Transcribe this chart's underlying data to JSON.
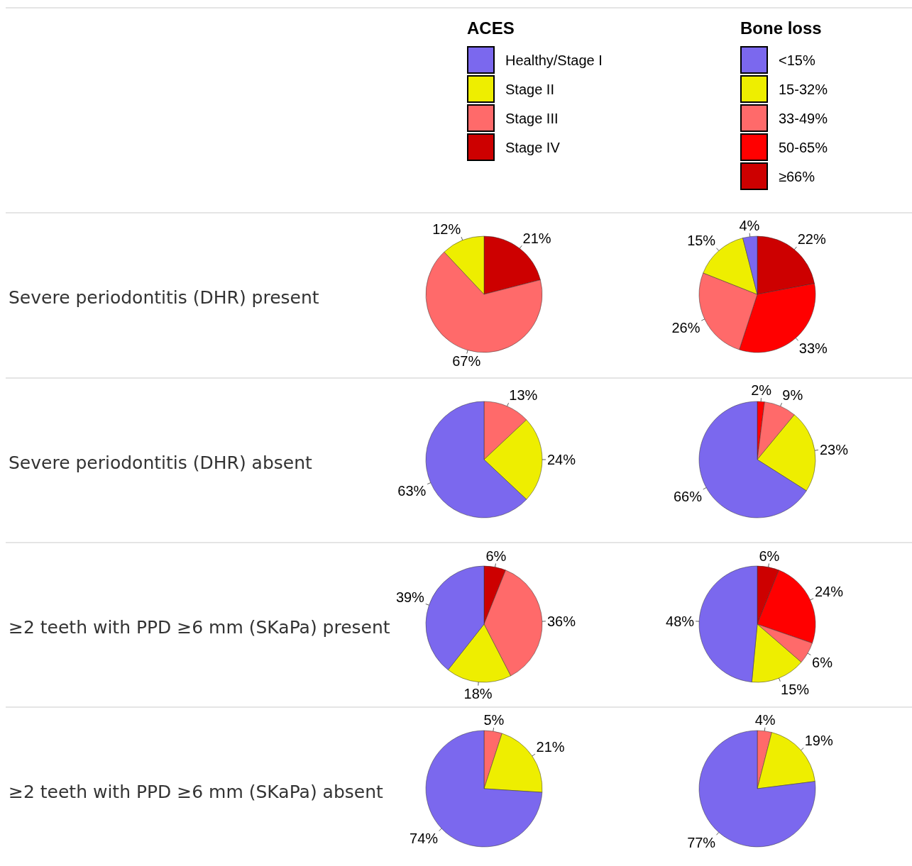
{
  "chart_data": [
    {
      "type": "pie",
      "title": "Severe periodontitis (DHR) present",
      "legend_title": "ACES",
      "legend": "top",
      "categories": [
        "Healthy/Stage I",
        "Stage II",
        "Stage III",
        "Stage IV"
      ],
      "colors": [
        "#7b68ee",
        "#eeee00",
        "#ff6a6a",
        "#cd0000"
      ],
      "values": [
        null,
        12,
        67,
        21
      ],
      "value_labels": [
        null,
        "12%",
        "67%",
        "21%"
      ]
    },
    {
      "type": "pie",
      "legend_title": "Bone loss",
      "legend": "top",
      "categories": [
        "<15%",
        "15-32%",
        "33-49%",
        "50-65%",
        "≥66%"
      ],
      "colors": [
        "#7b68ee",
        "#eeee00",
        "#ff6a6a",
        "#ff0000",
        "#cd0000"
      ],
      "values": [
        4,
        15,
        26,
        33,
        22
      ],
      "value_labels": [
        "4%",
        "15%",
        "26%",
        "33%",
        "22%"
      ]
    },
    {
      "type": "pie",
      "title": "Severe periodontitis (DHR) absent",
      "colors": [
        "#7b68ee",
        "#eeee00",
        "#ff6a6a",
        null
      ],
      "values": [
        63,
        24,
        13,
        null
      ],
      "value_labels": [
        "63%",
        "24%",
        "13%",
        null
      ]
    },
    {
      "type": "pie",
      "colors": [
        "#7b68ee",
        "#eeee00",
        "#ff6a6a",
        "#ff0000",
        null
      ],
      "values": [
        66,
        23,
        9,
        2,
        null
      ],
      "value_labels": [
        "66%",
        "23%",
        "9%",
        "2%",
        null
      ]
    },
    {
      "type": "pie",
      "title": "≥2 teeth with PPD ≥6 mm (SKaPa) present",
      "colors": [
        "#7b68ee",
        "#eeee00",
        "#ff6a6a",
        "#cd0000"
      ],
      "values": [
        39,
        18,
        36,
        6
      ],
      "value_labels": [
        "39%",
        "18%",
        "36%",
        "6%"
      ]
    },
    {
      "type": "pie",
      "colors": [
        "#7b68ee",
        "#eeee00",
        "#ff6a6a",
        "#ff0000",
        "#cd0000"
      ],
      "values": [
        48,
        15,
        6,
        24,
        6
      ],
      "value_labels": [
        "48%",
        "15%",
        "6%",
        "24%",
        "6%"
      ]
    },
    {
      "type": "pie",
      "title": "≥2 teeth with PPD ≥6 mm (SKaPa) absent",
      "colors": [
        "#7b68ee",
        "#eeee00",
        "#ff6a6a",
        null
      ],
      "values": [
        74,
        21,
        5,
        null
      ],
      "value_labels": [
        "74%",
        "21%",
        "5%",
        null
      ]
    },
    {
      "type": "pie",
      "colors": [
        "#7b68ee",
        "#eeee00",
        "#ff6a6a",
        null,
        null
      ],
      "values": [
        77,
        19,
        4,
        null,
        null
      ],
      "value_labels": [
        "77%",
        "19%",
        "4%",
        null,
        null
      ]
    }
  ]
}
